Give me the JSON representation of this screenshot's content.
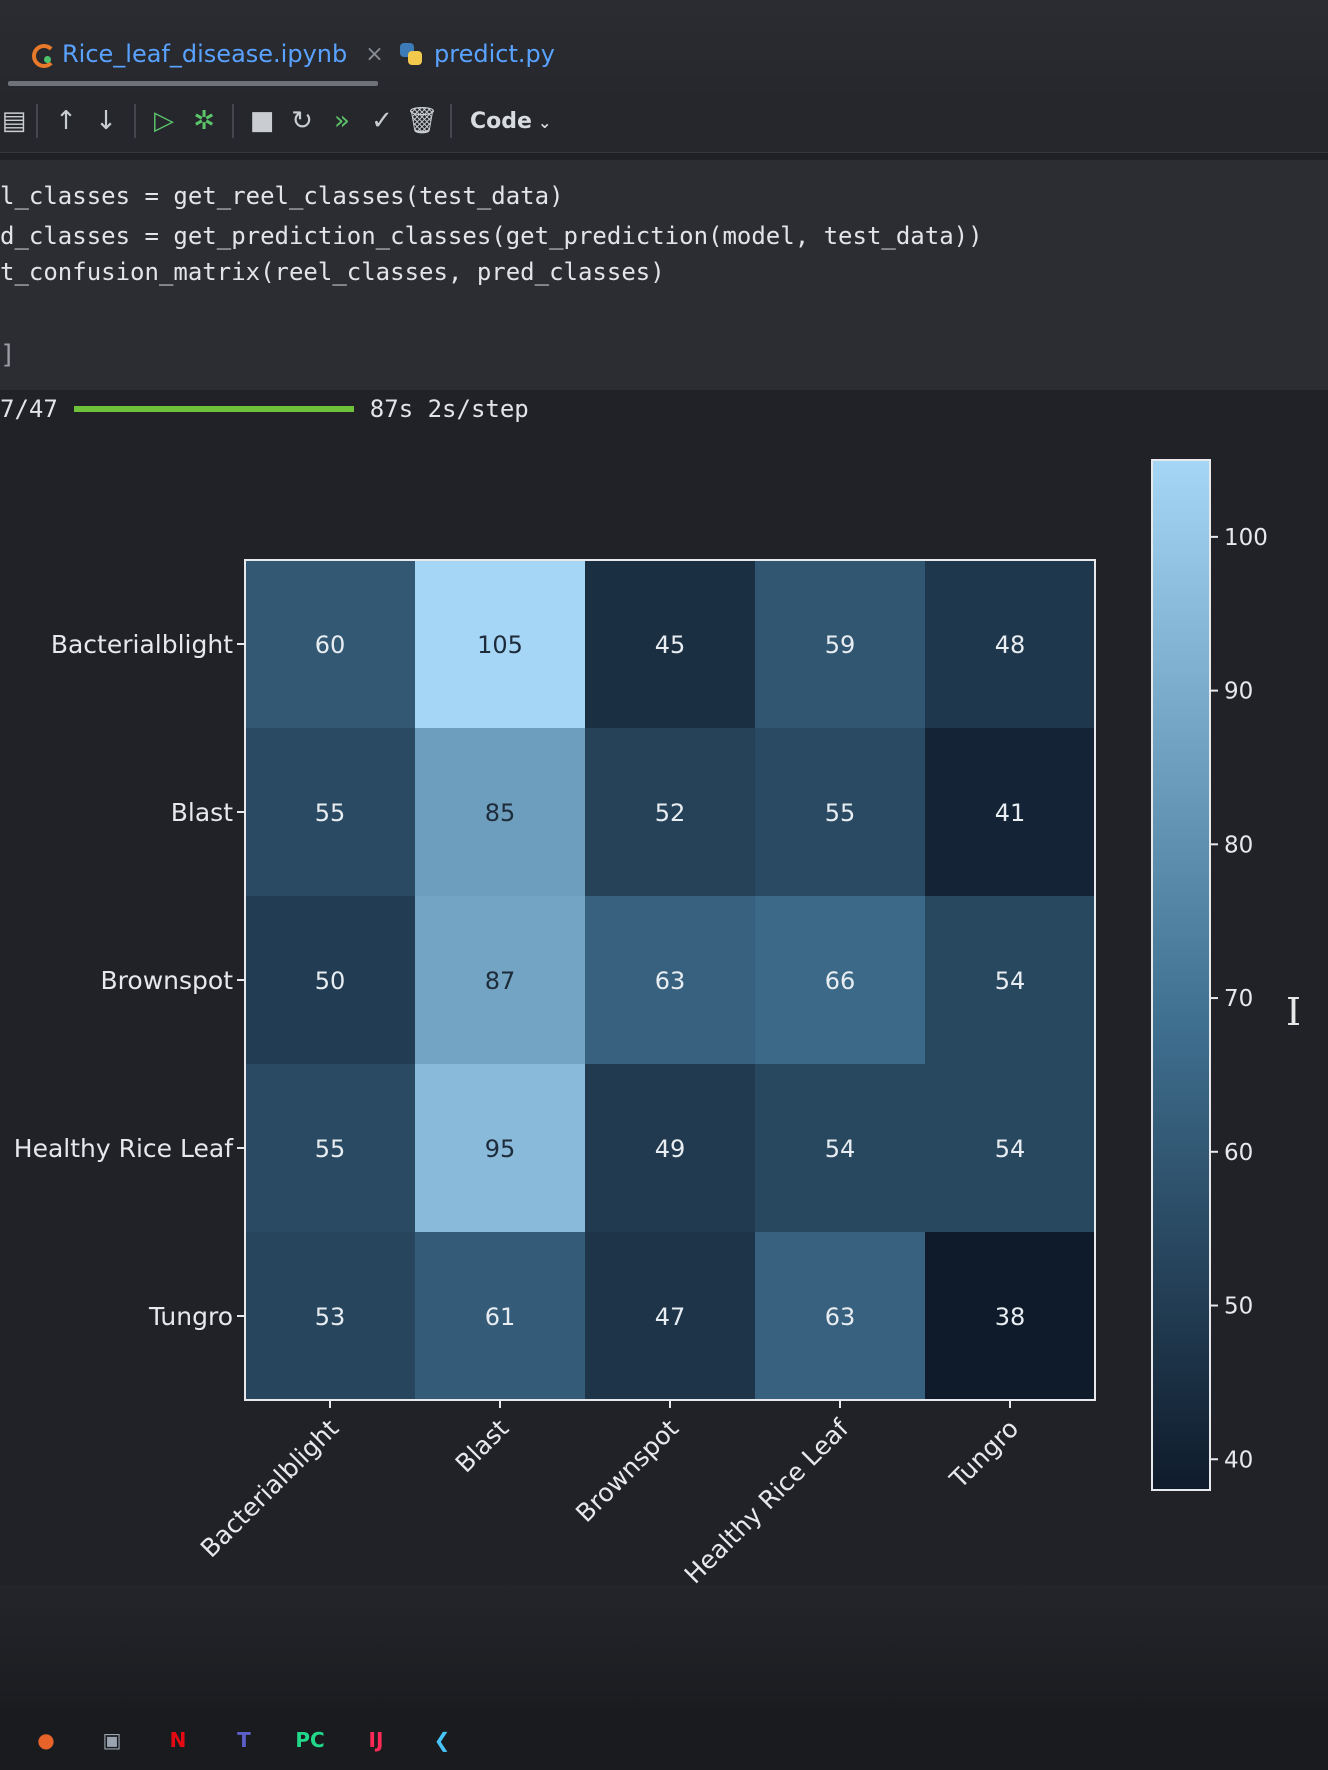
{
  "tabs": [
    {
      "label": "Rice_leaf_disease.ipynb",
      "icon": "notebook-icon",
      "active": true,
      "close": "×"
    },
    {
      "label": "predict.py",
      "icon": "python-icon",
      "active": false
    }
  ],
  "toolbar": {
    "cell_type": "Code",
    "icons": [
      "notebook-outline-icon",
      "move-up-icon",
      "move-down-icon",
      "run-cell-icon",
      "debug-icon",
      "stop-icon",
      "restart-icon",
      "run-all-icon",
      "clear-output-icon",
      "delete-icon"
    ]
  },
  "code_cell": {
    "lines": [
      "l_classes = get_reel_classes(test_data)",
      "d_classes = get_prediction_classes(get_prediction(model, test_data))",
      "t_confusion_matrix(reel_classes, pred_classes)"
    ],
    "execution_count": "]"
  },
  "progress": {
    "step_text": "7/47",
    "fraction": 1.0,
    "timing_text": "87s 2s/step"
  },
  "chart_data": {
    "type": "heatmap",
    "rows": [
      "Bacterialblight",
      "Blast",
      "Brownspot",
      "Healthy Rice Leaf",
      "Tungro"
    ],
    "columns": [
      "Bacterialblight",
      "Blast",
      "Brownspot",
      "Healthy Rice Leaf",
      "Tungro"
    ],
    "values": [
      [
        60,
        105,
        45,
        59,
        48
      ],
      [
        55,
        85,
        52,
        55,
        41
      ],
      [
        50,
        87,
        63,
        66,
        54
      ],
      [
        55,
        95,
        49,
        54,
        54
      ],
      [
        53,
        61,
        47,
        63,
        38
      ]
    ],
    "colorbar": {
      "min": 38,
      "max": 105,
      "ticks": [
        40,
        50,
        60,
        70,
        80,
        90,
        100
      ],
      "colors": {
        "low": "#0f1b2b",
        "high": "#a6d6f5"
      }
    },
    "xlabel": "",
    "ylabel": ""
  },
  "taskbar": {
    "icons": [
      {
        "name": "firefox-icon",
        "glyph": "●",
        "color": "#e8632a"
      },
      {
        "name": "viewer-icon",
        "glyph": "▣",
        "color": "#9aa4b0"
      },
      {
        "name": "netflix-icon",
        "glyph": "N",
        "color": "#e50914"
      },
      {
        "name": "teams-icon",
        "glyph": "T",
        "color": "#5b5fc7"
      },
      {
        "name": "pycharm-icon",
        "glyph": "PC",
        "color": "#21d789"
      },
      {
        "name": "intellij-icon",
        "glyph": "IJ",
        "color": "#fe2857"
      },
      {
        "name": "flutter-icon",
        "glyph": "❮",
        "color": "#47c5fb"
      }
    ]
  }
}
